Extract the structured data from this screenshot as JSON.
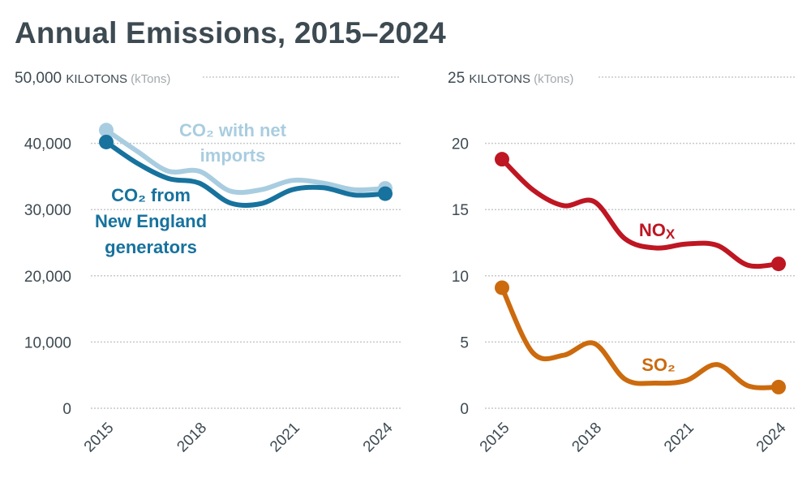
{
  "title": "Annual Emissions, 2015–2024",
  "chart_data": [
    {
      "type": "line",
      "title": "Annual Emissions, 2015–2024",
      "ylabel": "KILOTONS (kTons)",
      "unit_label": "KILOTONS",
      "unit_paren": "(kTons)",
      "ylim": [
        0,
        50000
      ],
      "yticks": [
        0,
        10000,
        20000,
        30000,
        40000,
        50000
      ],
      "ytick_labels": [
        "0",
        "10,000",
        "20,000",
        "30,000",
        "40,000",
        "50,000"
      ],
      "x": [
        2015,
        2016,
        2017,
        2018,
        2019,
        2020,
        2021,
        2022,
        2023,
        2024
      ],
      "xticks": [
        2015,
        2018,
        2021,
        2024
      ],
      "xtick_labels": [
        "2015",
        "2018",
        "2021",
        "2024"
      ],
      "grid": true,
      "series": [
        {
          "name": "CO2 with net imports",
          "label_lines": [
            "CO₂ with net",
            "imports"
          ],
          "color": "#a9cde0",
          "values": [
            42000,
            38800,
            35800,
            35800,
            32800,
            33000,
            34400,
            34000,
            33000,
            33200
          ]
        },
        {
          "name": "CO2 from New England generators",
          "label_lines": [
            "CO₂ from",
            "New England",
            "generators"
          ],
          "color": "#17729e",
          "values": [
            40200,
            37000,
            34700,
            34000,
            31000,
            30900,
            33000,
            33300,
            32200,
            32400
          ]
        }
      ]
    },
    {
      "type": "line",
      "ylabel": "KILOTONS (kTons)",
      "unit_label": "KILOTONS",
      "unit_paren": "(kTons)",
      "ylim": [
        0,
        25
      ],
      "yticks": [
        0,
        5,
        10,
        15,
        20,
        25
      ],
      "ytick_labels": [
        "0",
        "5",
        "10",
        "15",
        "20",
        "25"
      ],
      "x": [
        2015,
        2016,
        2017,
        2018,
        2019,
        2020,
        2021,
        2022,
        2023,
        2024
      ],
      "xticks": [
        2015,
        2018,
        2021,
        2024
      ],
      "xtick_labels": [
        "2015",
        "2018",
        "2021",
        "2024"
      ],
      "grid": true,
      "series": [
        {
          "name": "NOx",
          "label_lines": [
            "NOx"
          ],
          "color": "#be1622",
          "values": [
            18.8,
            16.5,
            15.3,
            15.6,
            12.8,
            12.1,
            12.4,
            12.3,
            10.8,
            10.9
          ]
        },
        {
          "name": "SO2",
          "label_lines": [
            "SO₂"
          ],
          "color": "#cc6a0e",
          "values": [
            9.1,
            4.2,
            4.0,
            4.9,
            2.2,
            1.9,
            2.1,
            3.3,
            1.7,
            1.6
          ]
        }
      ]
    }
  ]
}
